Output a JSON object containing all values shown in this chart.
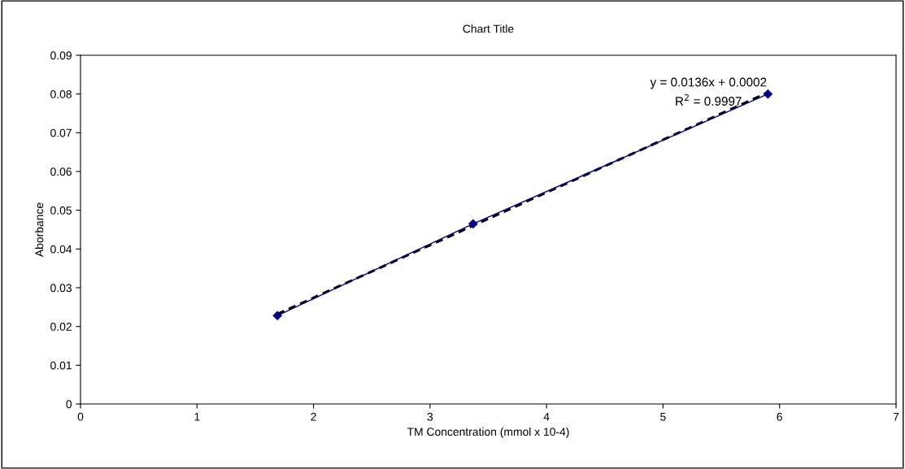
{
  "chart_data": {
    "type": "line",
    "title": "Chart Title",
    "xlabel": "TM Concentration (mmol x 10-4)",
    "ylabel": "Aborbance",
    "x": [
      1.69,
      3.37,
      5.9
    ],
    "series": [
      {
        "color": "#000080",
        "values": [
          0.0228,
          0.0465,
          0.08
        ],
        "marker": "diamond",
        "line_style": "solid"
      },
      {
        "type": "line",
        "color": "#000000",
        "x": [
          1.69,
          5.9
        ],
        "values": [
          0.0232,
          0.0804
        ],
        "marker": "none",
        "line_style": "dashed"
      }
    ],
    "annotations": [
      "y = 0.0136x + 0.0002",
      "R$^{2}$ = 0.9997"
    ],
    "xlim": [
      0,
      7
    ],
    "ylim": [
      0,
      0.09
    ],
    "xticks": [
      0,
      1,
      2,
      3,
      4,
      5,
      6,
      7
    ],
    "yticks": [
      0,
      0.01,
      0.02,
      0.03,
      0.04,
      0.05,
      0.06,
      0.07,
      0.08,
      0.09
    ],
    "grid": false,
    "legend": false
  }
}
